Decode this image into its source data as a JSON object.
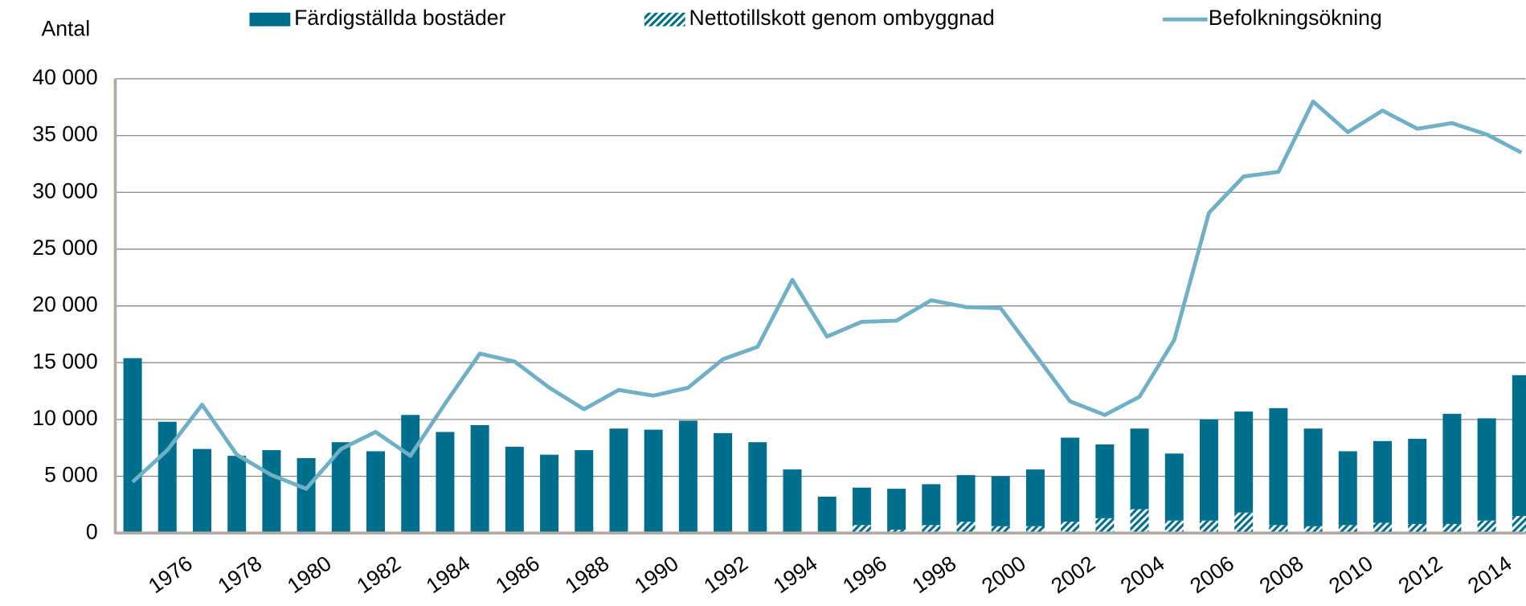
{
  "chart_data": {
    "type": "bar",
    "stacked": true,
    "ylabel": "Antal",
    "categories": [
      null,
      "1976",
      null,
      "1978",
      null,
      "1980",
      null,
      "1982",
      null,
      "1984",
      null,
      "1986",
      null,
      "1988",
      null,
      "1990",
      null,
      "1992",
      null,
      "1994",
      null,
      "1996",
      null,
      "1998",
      null,
      "2000",
      null,
      "2002",
      null,
      "2004",
      null,
      "2006",
      null,
      "2008",
      null,
      "2010",
      null,
      "2012",
      null,
      "2014",
      null
    ],
    "series": [
      {
        "name": "Färdigställda bostäder",
        "type": "bar",
        "color": "#006f8e",
        "values": [
          15400,
          9800,
          7400,
          6800,
          7300,
          6600,
          8000,
          7200,
          10400,
          8900,
          9500,
          7600,
          6900,
          7300,
          9200,
          9100,
          9900,
          8800,
          8000,
          5600,
          3200,
          3300,
          3600,
          3600,
          4100,
          4400,
          5000,
          7400,
          6500,
          7100,
          5900,
          8900,
          8900,
          10300,
          8600,
          6500,
          7200,
          7500,
          9700,
          9000,
          12400
        ]
      },
      {
        "name": "Nettotillskott genom ombyggnad",
        "type": "bar",
        "color": "#006f8e",
        "hatched": true,
        "values": [
          0,
          0,
          0,
          0,
          0,
          0,
          0,
          0,
          0,
          0,
          0,
          0,
          0,
          0,
          0,
          0,
          0,
          0,
          0,
          0,
          0,
          700,
          300,
          700,
          1000,
          600,
          600,
          1000,
          1300,
          2100,
          1100,
          1100,
          1800,
          700,
          600,
          700,
          900,
          800,
          800,
          1100,
          1500
        ]
      },
      {
        "name": "Befolkningsökning",
        "type": "line",
        "color": "#6fb0c6",
        "values": [
          4500,
          7300,
          11300,
          6900,
          5100,
          3900,
          7400,
          8900,
          6800,
          11400,
          15800,
          15100,
          12800,
          10900,
          12600,
          12100,
          12800,
          15300,
          16400,
          22300,
          17300,
          18600,
          18700,
          20500,
          19900,
          19800,
          15700,
          11600,
          10400,
          12000,
          17000,
          28200,
          31400,
          31800,
          38000,
          35300,
          37200,
          35600,
          36100,
          35100,
          33500
        ]
      }
    ],
    "ylim": [
      0,
      40000
    ],
    "yticks": [
      0,
      {
        "value": 5000,
        "label": "5 000"
      },
      {
        "value": 10000,
        "label": "10 000"
      },
      {
        "value": 15000,
        "label": "15 000"
      },
      {
        "value": 20000,
        "label": "20 000"
      },
      {
        "value": 25000,
        "label": "25 000"
      },
      {
        "value": 30000,
        "label": "30 000"
      },
      {
        "value": 35000,
        "label": "35 000"
      },
      {
        "value": 40000,
        "label": "40 000"
      }
    ],
    "grid": true,
    "legend": "top"
  }
}
